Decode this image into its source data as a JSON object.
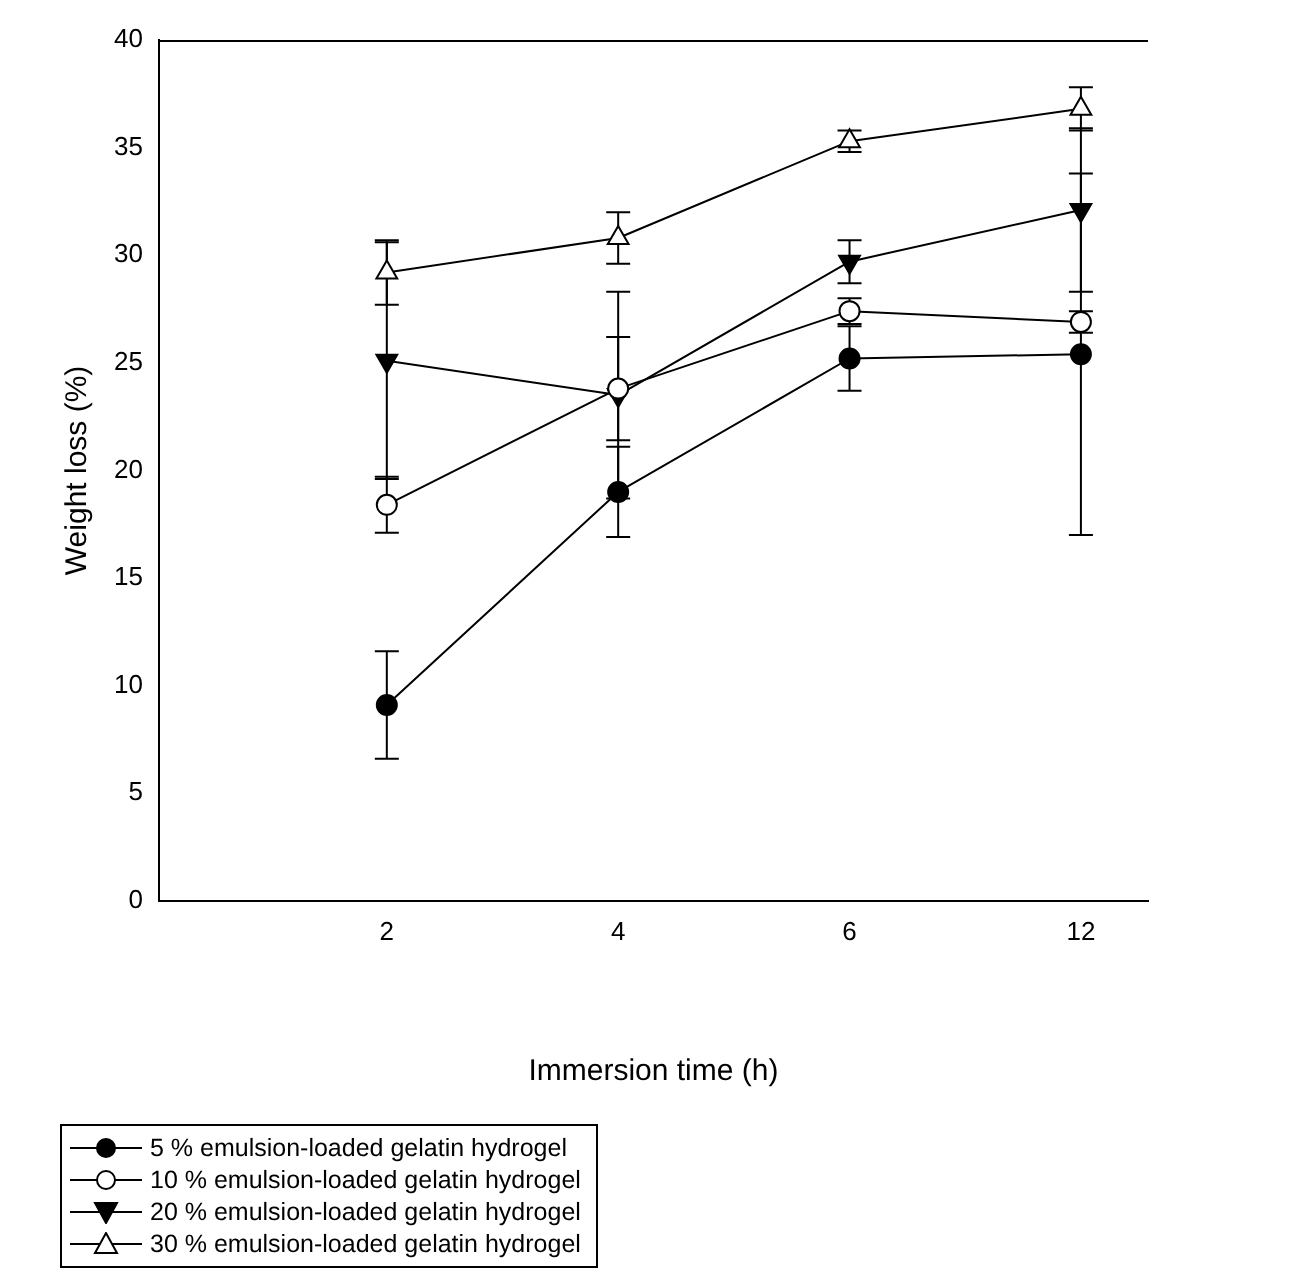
{
  "chart_data": {
    "type": "line",
    "xlabel": "Immersion time (h)",
    "ylabel": "Weight loss (%)",
    "categories": [
      "2",
      "4",
      "6",
      "12"
    ],
    "ylim": [
      0,
      40
    ],
    "yticks": [
      0,
      5,
      10,
      15,
      20,
      25,
      30,
      35,
      40
    ],
    "grid": false,
    "legend": "bottom",
    "line_style": "solid",
    "series": [
      {
        "name": "5 % emulsion-loaded gelatin hydrogel",
        "color": "#000000",
        "marker": "circle",
        "values": [
          9.1,
          19.0,
          25.2,
          25.4
        ],
        "errors": [
          2.5,
          2.1,
          1.5,
          8.4
        ]
      },
      {
        "name": "10 % emulsion-loaded gelatin hydrogel",
        "color": "#000000",
        "marker": "circle-open",
        "values": [
          18.4,
          23.8,
          27.4,
          26.9
        ],
        "errors": [
          1.3,
          2.4,
          0.6,
          0.5
        ]
      },
      {
        "name": "20 % emulsion-loaded gelatin hydrogel",
        "color": "#000000",
        "marker": "triangle-down",
        "values": [
          25.1,
          23.5,
          29.7,
          32.1
        ],
        "errors": [
          5.5,
          4.8,
          1.0,
          3.8
        ]
      },
      {
        "name": "30 % emulsion-loaded gelatin hydrogel",
        "color": "#000000",
        "marker": "triangle-open",
        "values": [
          29.2,
          30.8,
          35.3,
          36.8
        ],
        "errors": [
          1.5,
          1.2,
          0.5,
          1.0
        ]
      }
    ]
  }
}
